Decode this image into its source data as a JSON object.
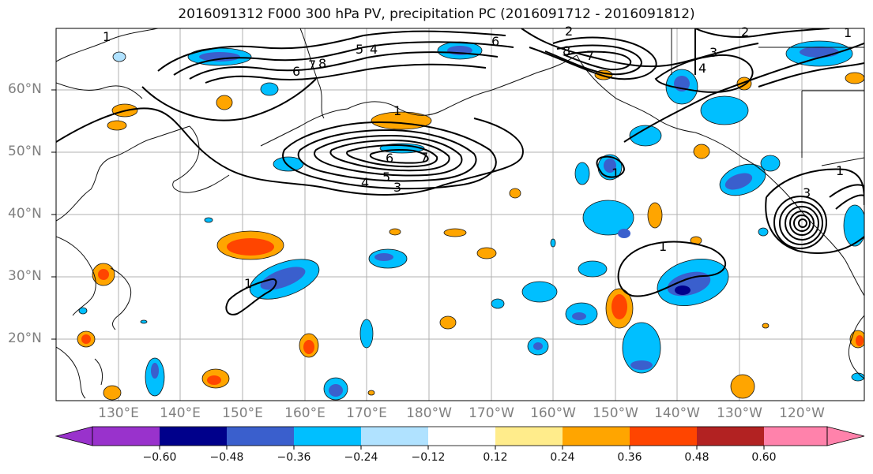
{
  "title": "2016091312 F000 300 hPa PV, precipitation PC (2016091712 - 2016091812)",
  "lat_labels": [
    "60°N",
    "50°N",
    "40°N",
    "30°N",
    "20°N"
  ],
  "lon_labels": [
    "130°E",
    "140°E",
    "150°E",
    "160°E",
    "170°E",
    "180°W",
    "170°W",
    "160°W",
    "150°W",
    "140°W",
    "130°W",
    "120°W"
  ],
  "contour_labels": [
    "1",
    "5",
    "4",
    "6",
    "7",
    "8",
    "1",
    "2",
    "6",
    "8",
    "7",
    "2",
    "3",
    "4",
    "1",
    "6",
    "7",
    "5",
    "4",
    "3",
    "1",
    "1",
    "1",
    "3",
    "1"
  ],
  "colorbar": {
    "ticks": [
      "−0.60",
      "−0.48",
      "−0.36",
      "−0.24",
      "−0.12",
      "0.12",
      "0.24",
      "0.36",
      "0.48",
      "0.60"
    ],
    "colors": [
      "#9932cc",
      "#00008b",
      "#3a5fcd",
      "#00bfff",
      "#b0e2ff",
      "#ffffff",
      "#ffec8b",
      "#ffa500",
      "#ff4500",
      "#b22222",
      "#ff82ab"
    ]
  }
}
